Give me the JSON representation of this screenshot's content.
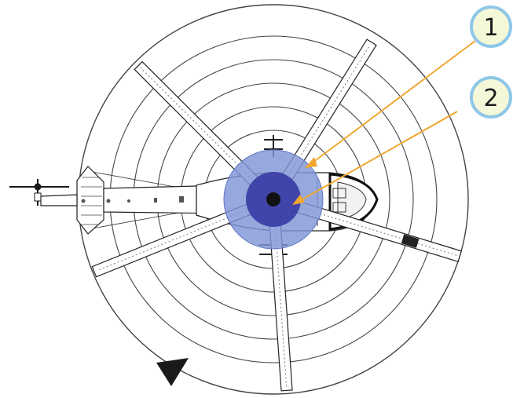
{
  "callouts": [
    {
      "number": "1"
    },
    {
      "number": "2"
    }
  ],
  "colors": {
    "rotor_disc_outer": "#7f95d6",
    "rotor_disc_inner": "#3c3fa8",
    "hub": "#111111",
    "callout_fill": "#f4f8d8",
    "callout_ring": "#8ec7e8",
    "leader_line": "#f0a830",
    "rings": "#444444",
    "outline": "#222222"
  },
  "icons": {
    "rotation_arrow": "triangle-arrowhead-icon",
    "helicopter": "helicopter-top-view-icon"
  }
}
